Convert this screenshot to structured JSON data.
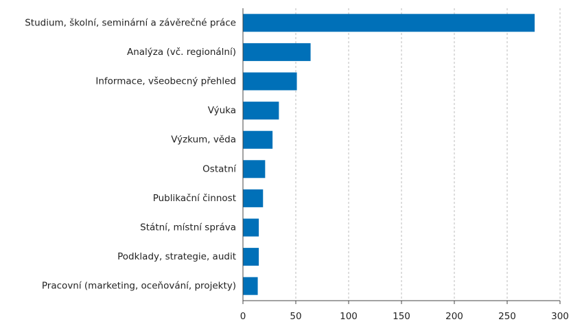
{
  "chart_data": {
    "type": "bar",
    "orientation": "horizontal",
    "categories": [
      "Studium, školní, seminární a závěrečné práce",
      "Analýza (vč. regionální)",
      "Informace, všeobecný přehled",
      "Výuka",
      "Výzkum, věda",
      "Ostatní",
      "Publikační činnost",
      "Státní, místní správa",
      "Podklady, strategie, audit",
      "Pracovní (marketing, oceňování, projekty)"
    ],
    "values": [
      276,
      64,
      51,
      34,
      28,
      21,
      19,
      15,
      15,
      14
    ],
    "color": "#0070b8",
    "xlim": [
      0,
      300
    ],
    "xticks": [
      0,
      50,
      100,
      150,
      200,
      250,
      300
    ],
    "grid": true
  }
}
